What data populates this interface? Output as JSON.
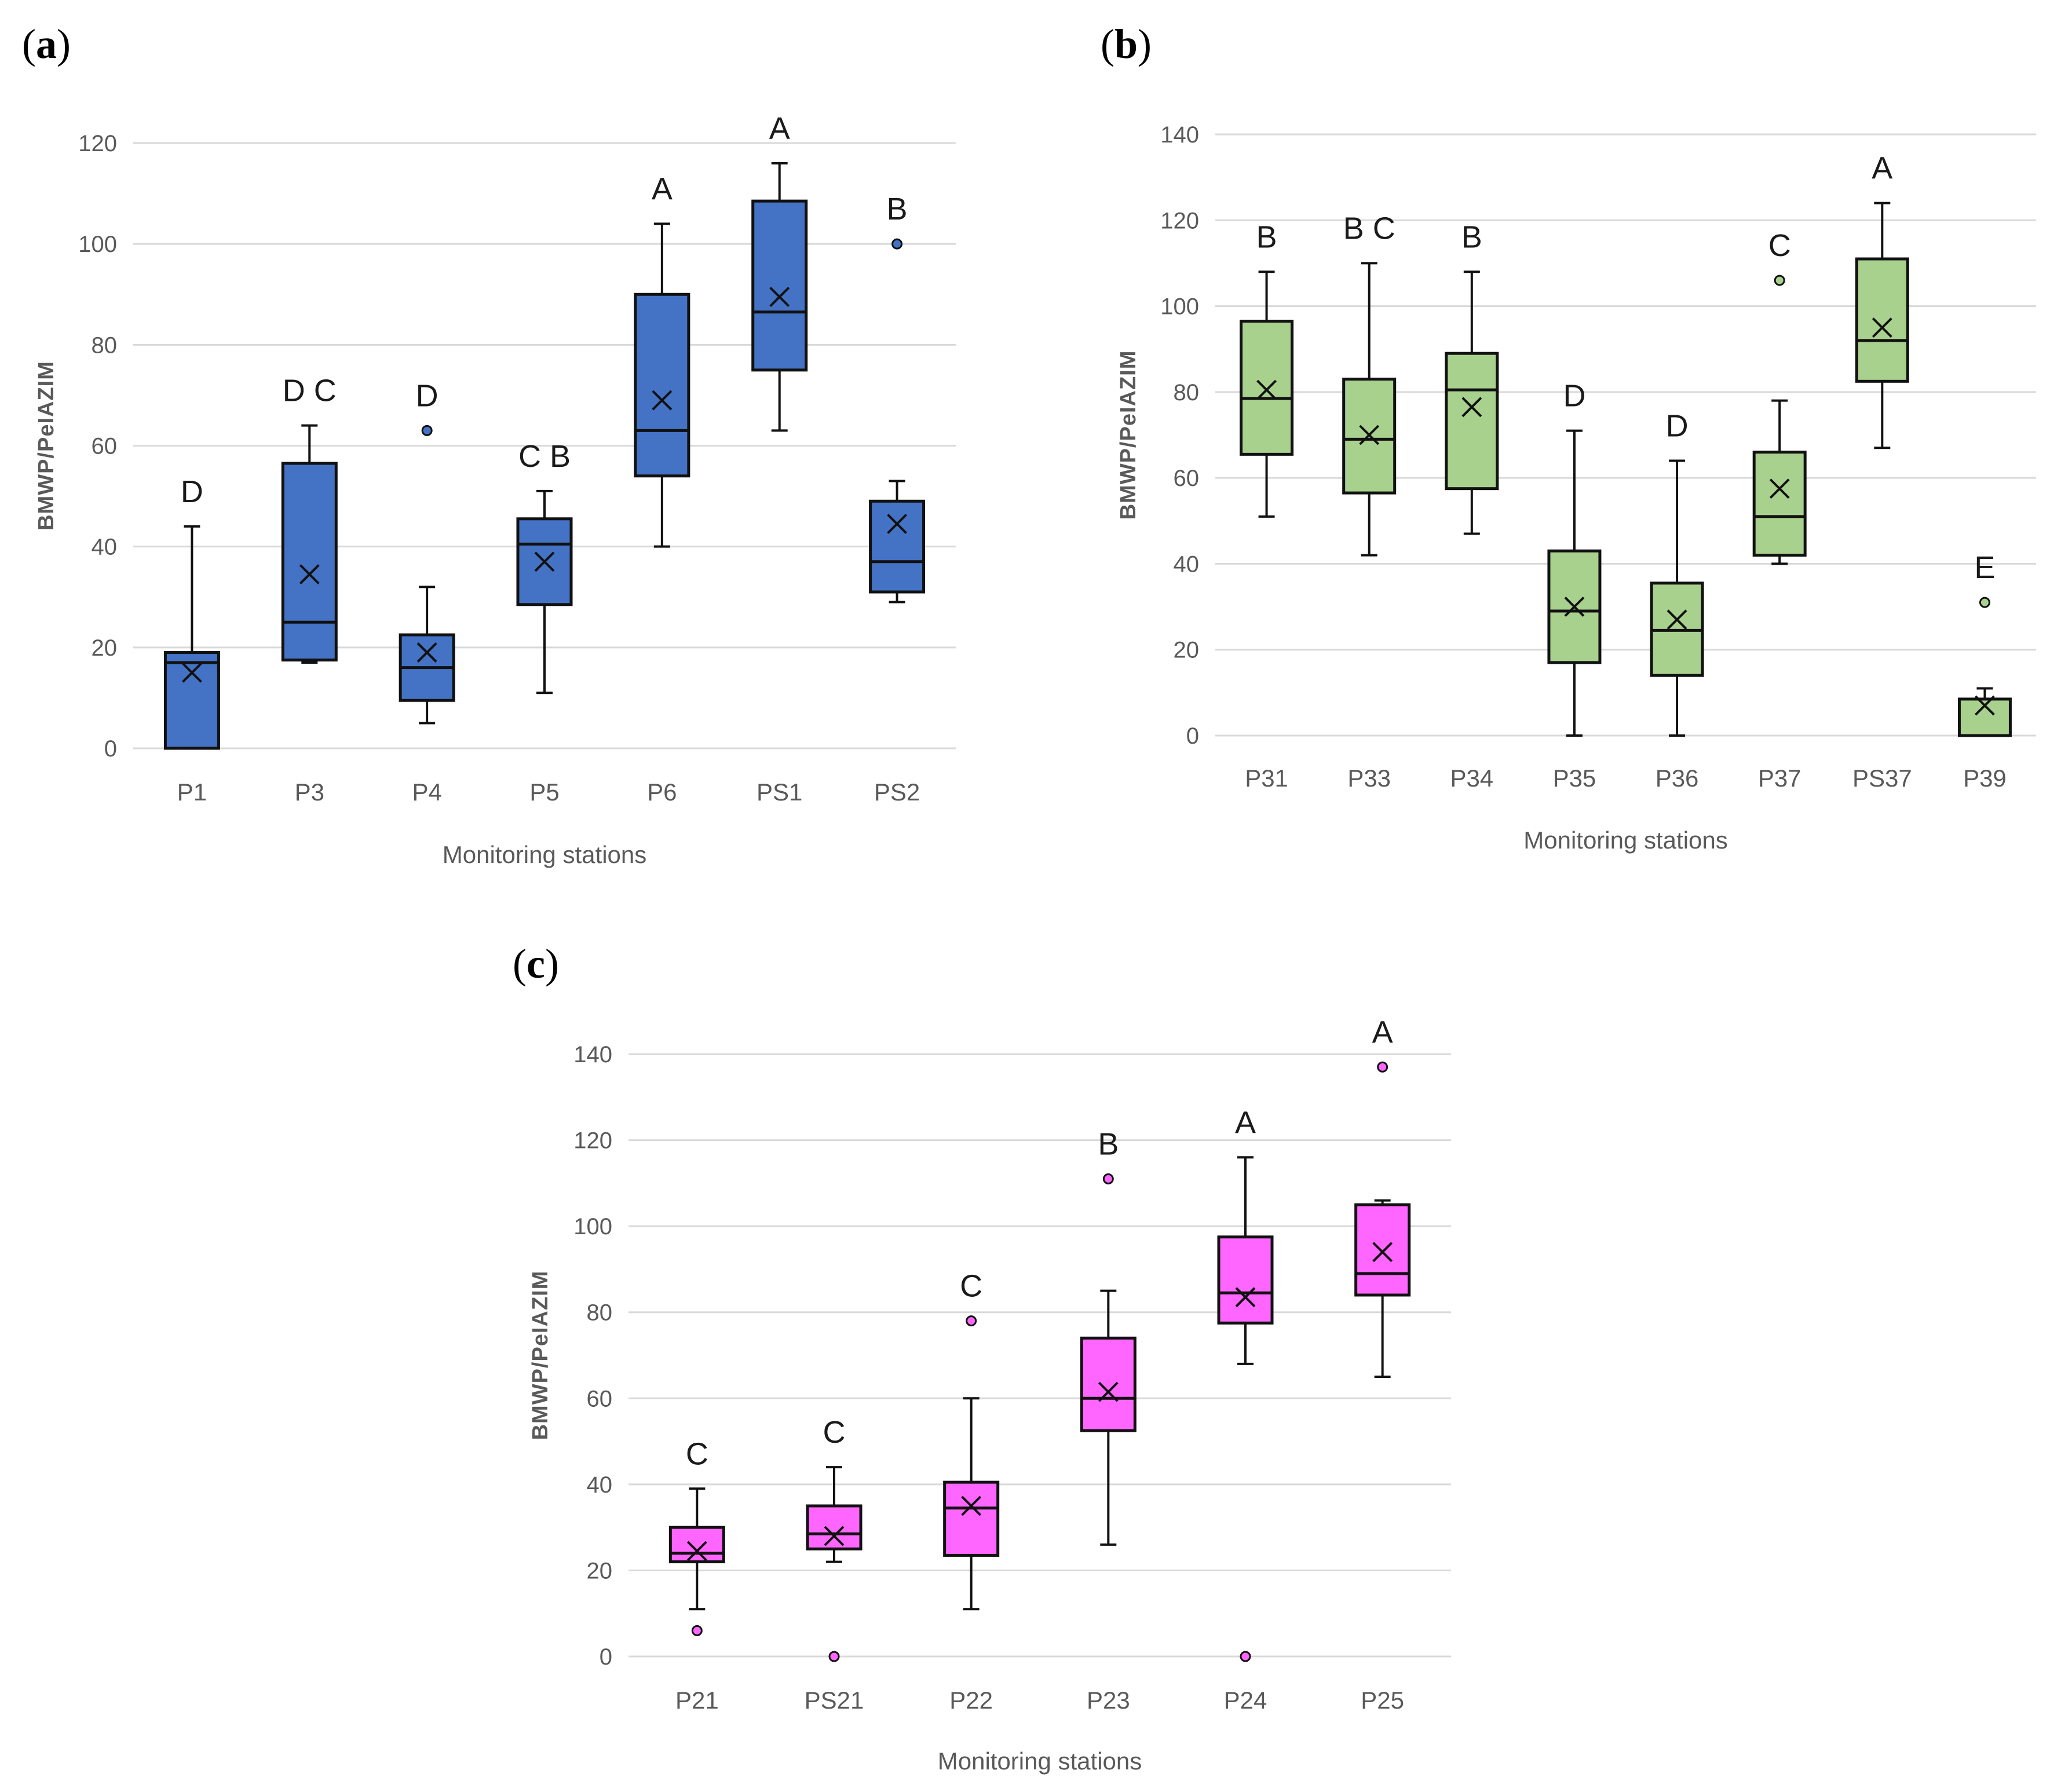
{
  "figure": {
    "panels": [
      {
        "id": "a",
        "letter": "a"
      },
      {
        "id": "b",
        "letter": "b"
      },
      {
        "id": "c",
        "letter": "c"
      }
    ]
  },
  "chart_data": [
    {
      "panel": "a",
      "type": "box",
      "title": "",
      "xlabel": "Monitoring stations",
      "ylabel": "BMWP/PeIAZIM",
      "ylim": [
        0,
        120
      ],
      "yticks": [
        0,
        20,
        40,
        60,
        80,
        100,
        120
      ],
      "grid": true,
      "fill_color": "#4472C4",
      "categories": [
        "P1",
        "P3",
        "P4",
        "P5",
        "P6",
        "PS1",
        "PS2"
      ],
      "boxes": [
        {
          "station": "P1",
          "min": 0,
          "q1": 0,
          "median": 17,
          "q3": 19,
          "max": 44,
          "mean": 15,
          "outliers": [],
          "letters": "D"
        },
        {
          "station": "P3",
          "min": 17,
          "q1": 17.5,
          "median": 25,
          "q3": 56.5,
          "max": 64,
          "mean": 34.5,
          "outliers": [],
          "letters": "D   C"
        },
        {
          "station": "P4",
          "min": 5,
          "q1": 9.5,
          "median": 16,
          "q3": 22.5,
          "max": 32,
          "mean": 19,
          "outliers": [
            63
          ],
          "letters": "D"
        },
        {
          "station": "P5",
          "min": 11,
          "q1": 28.5,
          "median": 40.5,
          "q3": 45.5,
          "max": 51,
          "mean": 37,
          "outliers": [],
          "letters": "C   B"
        },
        {
          "station": "P6",
          "min": 40,
          "q1": 54,
          "median": 63,
          "q3": 90,
          "max": 104,
          "mean": 69,
          "outliers": [],
          "letters": "A"
        },
        {
          "station": "PS1",
          "min": 63,
          "q1": 75,
          "median": 86.5,
          "q3": 108.5,
          "max": 116,
          "mean": 89.5,
          "outliers": [],
          "letters": "A"
        },
        {
          "station": "PS2",
          "min": 29,
          "q1": 31,
          "median": 37,
          "q3": 49,
          "max": 53,
          "mean": 44.5,
          "outliers": [
            100
          ],
          "letters": "B"
        }
      ]
    },
    {
      "panel": "b",
      "type": "box",
      "title": "",
      "xlabel": "Monitoring stations",
      "ylabel": "BMWP/PeIAZIM",
      "ylim": [
        0,
        140
      ],
      "yticks": [
        0,
        20,
        40,
        60,
        80,
        100,
        120,
        140
      ],
      "grid": true,
      "fill_color": "#A9D18E",
      "categories": [
        "P31",
        "P33",
        "P34",
        "P35",
        "P36",
        "P37",
        "PS37",
        "P39"
      ],
      "boxes": [
        {
          "station": "P31",
          "min": 51,
          "q1": 65.5,
          "median": 78.5,
          "q3": 96.5,
          "max": 108,
          "mean": 80.5,
          "outliers": [],
          "letters": "B"
        },
        {
          "station": "P33",
          "min": 42,
          "q1": 56.5,
          "median": 69,
          "q3": 83,
          "max": 110,
          "mean": 70,
          "outliers": [],
          "letters": "B  C"
        },
        {
          "station": "P34",
          "min": 47,
          "q1": 57.5,
          "median": 80.5,
          "q3": 89,
          "max": 108,
          "mean": 76.5,
          "outliers": [],
          "letters": "B"
        },
        {
          "station": "P35",
          "min": 0,
          "q1": 17,
          "median": 29,
          "q3": 43,
          "max": 71,
          "mean": 30,
          "outliers": [],
          "letters": "D"
        },
        {
          "station": "P36",
          "min": 0,
          "q1": 14,
          "median": 24.5,
          "q3": 35.5,
          "max": 64,
          "mean": 27,
          "outliers": [],
          "letters": "D"
        },
        {
          "station": "P37",
          "min": 40,
          "q1": 42,
          "median": 51,
          "q3": 66,
          "max": 78,
          "mean": 57.5,
          "outliers": [
            106
          ],
          "letters": "C"
        },
        {
          "station": "PS37",
          "min": 67,
          "q1": 82.5,
          "median": 92,
          "q3": 111,
          "max": 124,
          "mean": 95,
          "outliers": [],
          "letters": "A"
        },
        {
          "station": "P39",
          "min": 0,
          "q1": 0,
          "median": 0,
          "q3": 8.5,
          "max": 11,
          "mean": 7,
          "outliers": [
            31
          ],
          "letters": "E"
        }
      ]
    },
    {
      "panel": "c",
      "type": "box",
      "title": "",
      "xlabel": "Monitoring stations",
      "ylabel": "BMWP/PeIAZIM",
      "ylim": [
        0,
        140
      ],
      "yticks": [
        0,
        20,
        40,
        60,
        80,
        100,
        120,
        140
      ],
      "grid": true,
      "fill_color": "#FF66FF",
      "categories": [
        "P21",
        "PS21",
        "P22",
        "P23",
        "P24",
        "P25"
      ],
      "boxes": [
        {
          "station": "P21",
          "min": 11,
          "q1": 22,
          "median": 24,
          "q3": 30,
          "max": 39,
          "mean": 24.5,
          "outliers": [
            6
          ],
          "letters": "C"
        },
        {
          "station": "PS21",
          "min": 22,
          "q1": 25,
          "median": 28.5,
          "q3": 35,
          "max": 44,
          "mean": 28,
          "outliers": [
            0
          ],
          "letters": "C"
        },
        {
          "station": "P22",
          "min": 11,
          "q1": 23.5,
          "median": 34.5,
          "q3": 40.5,
          "max": 60,
          "mean": 35,
          "outliers": [
            78
          ],
          "letters": "C"
        },
        {
          "station": "P23",
          "min": 26,
          "q1": 52.5,
          "median": 60,
          "q3": 74,
          "max": 85,
          "mean": 61.5,
          "outliers": [
            111
          ],
          "letters": "B"
        },
        {
          "station": "P24",
          "min": 68,
          "q1": 77.5,
          "median": 84.5,
          "q3": 97.5,
          "max": 116,
          "mean": 83.5,
          "outliers": [
            0
          ],
          "letters": "A"
        },
        {
          "station": "P25",
          "min": 65,
          "q1": 84,
          "median": 89,
          "q3": 105,
          "max": 106,
          "mean": 94,
          "outliers": [
            137
          ],
          "letters": "A"
        }
      ]
    }
  ]
}
